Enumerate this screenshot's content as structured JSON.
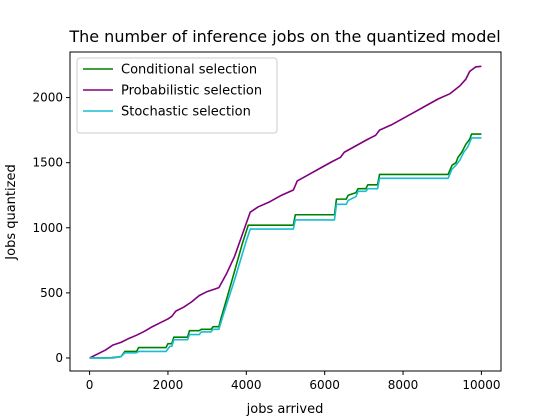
{
  "chart_data": {
    "type": "line",
    "title": "The number of inference jobs on the quantized model",
    "xlabel": "jobs arrived",
    "ylabel": "Jobs quantized",
    "xlim": [
      -500,
      10500
    ],
    "ylim": [
      -100,
      2350
    ],
    "xticks": [
      0,
      2000,
      4000,
      6000,
      8000,
      10000
    ],
    "yticks": [
      0,
      500,
      1000,
      1500,
      2000
    ],
    "grid": false,
    "legend_position": "upper-left",
    "series": [
      {
        "name": "Conditional selection",
        "color": "#008000",
        "points": [
          [
            0,
            0
          ],
          [
            500,
            0
          ],
          [
            800,
            10
          ],
          [
            900,
            50
          ],
          [
            1200,
            50
          ],
          [
            1250,
            80
          ],
          [
            1950,
            80
          ],
          [
            2000,
            110
          ],
          [
            2100,
            110
          ],
          [
            2150,
            160
          ],
          [
            2500,
            160
          ],
          [
            2550,
            210
          ],
          [
            2800,
            210
          ],
          [
            2850,
            220
          ],
          [
            3100,
            220
          ],
          [
            3150,
            240
          ],
          [
            3300,
            240
          ],
          [
            3350,
            300
          ],
          [
            3600,
            560
          ],
          [
            3900,
            880
          ],
          [
            4050,
            1020
          ],
          [
            5200,
            1020
          ],
          [
            5250,
            1100
          ],
          [
            6250,
            1100
          ],
          [
            6300,
            1220
          ],
          [
            6550,
            1220
          ],
          [
            6600,
            1250
          ],
          [
            6800,
            1270
          ],
          [
            6850,
            1300
          ],
          [
            7050,
            1300
          ],
          [
            7100,
            1330
          ],
          [
            7350,
            1330
          ],
          [
            7400,
            1410
          ],
          [
            9150,
            1410
          ],
          [
            9250,
            1480
          ],
          [
            9350,
            1500
          ],
          [
            9400,
            1540
          ],
          [
            9500,
            1580
          ],
          [
            9600,
            1640
          ],
          [
            9700,
            1680
          ],
          [
            9750,
            1720
          ],
          [
            10000,
            1720
          ]
        ]
      },
      {
        "name": "Probabilistic selection",
        "color": "#800080",
        "points": [
          [
            0,
            0
          ],
          [
            200,
            30
          ],
          [
            400,
            60
          ],
          [
            600,
            100
          ],
          [
            800,
            120
          ],
          [
            1000,
            150
          ],
          [
            1200,
            175
          ],
          [
            1400,
            205
          ],
          [
            1600,
            240
          ],
          [
            1800,
            270
          ],
          [
            2000,
            300
          ],
          [
            2100,
            320
          ],
          [
            2200,
            360
          ],
          [
            2400,
            390
          ],
          [
            2600,
            430
          ],
          [
            2800,
            480
          ],
          [
            3000,
            510
          ],
          [
            3200,
            530
          ],
          [
            3300,
            540
          ],
          [
            3500,
            650
          ],
          [
            3700,
            780
          ],
          [
            3900,
            950
          ],
          [
            4100,
            1120
          ],
          [
            4300,
            1160
          ],
          [
            4600,
            1200
          ],
          [
            4900,
            1250
          ],
          [
            5200,
            1290
          ],
          [
            5300,
            1360
          ],
          [
            5600,
            1410
          ],
          [
            5900,
            1460
          ],
          [
            6200,
            1510
          ],
          [
            6400,
            1540
          ],
          [
            6500,
            1580
          ],
          [
            6800,
            1630
          ],
          [
            7100,
            1680
          ],
          [
            7300,
            1710
          ],
          [
            7400,
            1750
          ],
          [
            7700,
            1790
          ],
          [
            8000,
            1840
          ],
          [
            8300,
            1890
          ],
          [
            8600,
            1940
          ],
          [
            8900,
            1990
          ],
          [
            9200,
            2030
          ],
          [
            9450,
            2090
          ],
          [
            9600,
            2140
          ],
          [
            9700,
            2200
          ],
          [
            9850,
            2235
          ],
          [
            10000,
            2240
          ]
        ]
      },
      {
        "name": "Stochastic selection",
        "color": "#17BECF",
        "points": [
          [
            0,
            0
          ],
          [
            600,
            0
          ],
          [
            800,
            10
          ],
          [
            900,
            40
          ],
          [
            1200,
            40
          ],
          [
            1250,
            50
          ],
          [
            1950,
            50
          ],
          [
            2050,
            90
          ],
          [
            2100,
            90
          ],
          [
            2150,
            140
          ],
          [
            2500,
            140
          ],
          [
            2550,
            180
          ],
          [
            2800,
            180
          ],
          [
            2850,
            200
          ],
          [
            3100,
            200
          ],
          [
            3150,
            220
          ],
          [
            3300,
            220
          ],
          [
            3400,
            320
          ],
          [
            3700,
            600
          ],
          [
            4000,
            900
          ],
          [
            4100,
            990
          ],
          [
            5200,
            990
          ],
          [
            5250,
            1060
          ],
          [
            6250,
            1060
          ],
          [
            6300,
            1180
          ],
          [
            6550,
            1180
          ],
          [
            6600,
            1210
          ],
          [
            6800,
            1240
          ],
          [
            6850,
            1280
          ],
          [
            7050,
            1280
          ],
          [
            7100,
            1300
          ],
          [
            7350,
            1300
          ],
          [
            7400,
            1380
          ],
          [
            9150,
            1380
          ],
          [
            9250,
            1450
          ],
          [
            9350,
            1480
          ],
          [
            9450,
            1520
          ],
          [
            9550,
            1580
          ],
          [
            9650,
            1620
          ],
          [
            9750,
            1690
          ],
          [
            10000,
            1690
          ]
        ]
      }
    ]
  }
}
